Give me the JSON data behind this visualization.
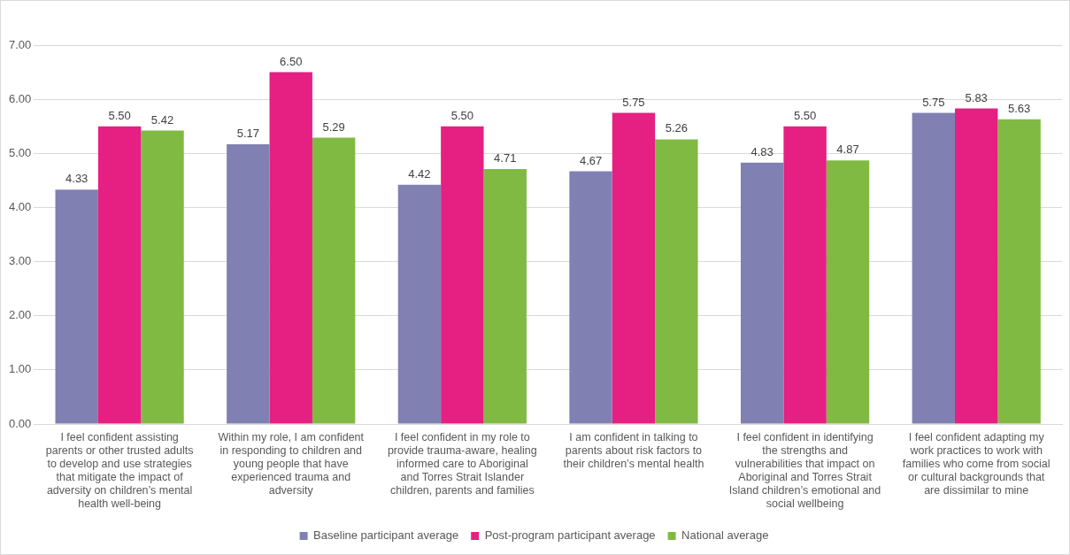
{
  "chart_data": {
    "type": "bar",
    "categories": [
      "I feel confident assisting parents or other trusted adults to develop and use strategies that mitigate the impact of adversity on children’s mental health well-being",
      "Within my role, I am confident in responding to children and young people that have experienced trauma and adversity",
      "I feel confident in my role to provide trauma-aware, healing informed care to Aboriginal and Torres Strait Islander children, parents and families",
      "I am confident in talking to parents about risk factors to their children’s mental health",
      "I feel confident in identifying the strengths and vulnerabilities that impact on Aboriginal and Torres Strait Island children’s emotional and social wellbeing",
      "I feel confident adapting my work practices to work with families who come from social or cultural backgrounds that are dissimilar to mine"
    ],
    "series": [
      {
        "name": "Baseline participant average",
        "color": "#8080b3",
        "values": [
          4.33,
          5.17,
          4.42,
          4.67,
          4.83,
          5.75
        ],
        "value_labels": [
          "4.33",
          "5.17",
          "4.42",
          "4.67",
          "4.83",
          "5.75"
        ]
      },
      {
        "name": "Post-program participant average",
        "color": "#e61f82",
        "values": [
          5.5,
          6.5,
          5.5,
          5.75,
          5.5,
          5.83
        ],
        "value_labels": [
          "5.50",
          "6.50",
          "5.50",
          "5.75",
          "5.50",
          "5.83"
        ]
      },
      {
        "name": "National average",
        "color": "#80ba42",
        "values": [
          5.42,
          5.29,
          4.71,
          5.26,
          4.87,
          5.63
        ],
        "value_labels": [
          "5.42",
          "5.29",
          "4.71",
          "5.26",
          "4.87",
          "5.63"
        ]
      }
    ],
    "ylim": [
      0,
      7
    ],
    "yticks": [
      {
        "value": 0,
        "label": "0.00"
      },
      {
        "value": 1,
        "label": "1.00"
      },
      {
        "value": 2,
        "label": "2.00"
      },
      {
        "value": 3,
        "label": "3.00"
      },
      {
        "value": 4,
        "label": "4.00"
      },
      {
        "value": 5,
        "label": "5.00"
      },
      {
        "value": 6,
        "label": "6.00"
      },
      {
        "value": 7,
        "label": "7.00"
      }
    ],
    "grid": "y",
    "legend": "bottom"
  }
}
